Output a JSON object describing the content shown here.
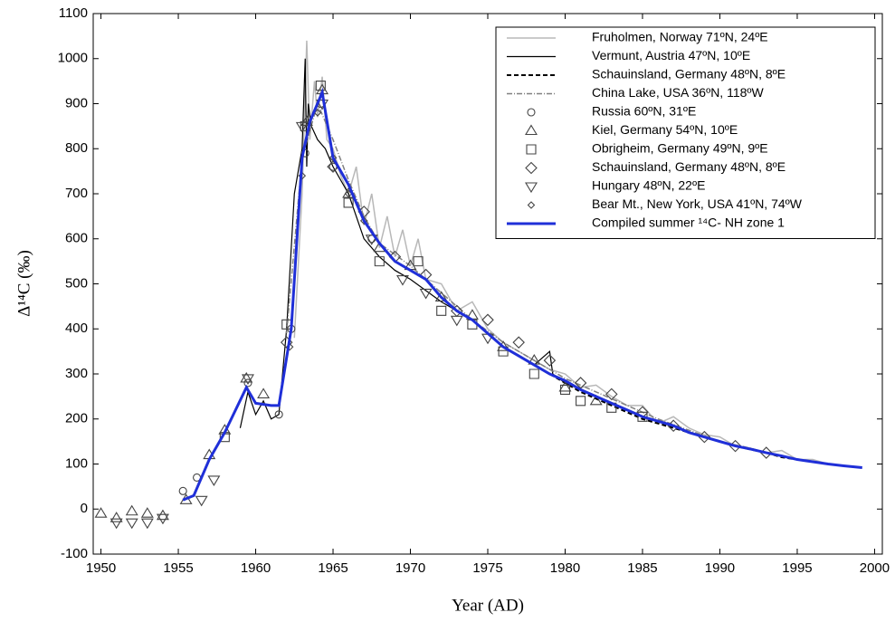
{
  "chart_data": {
    "type": "line",
    "x_label": "Year (AD)",
    "y_label": "Δ¹⁴C (‰)",
    "xlim": [
      1949.5,
      2000.5
    ],
    "ylim": [
      -100,
      1100
    ],
    "xticks": [
      1950,
      1955,
      1960,
      1965,
      1970,
      1975,
      1980,
      1985,
      1990,
      1995,
      2000
    ],
    "yticks": [
      -100,
      0,
      100,
      200,
      300,
      400,
      500,
      600,
      700,
      800,
      900,
      1000,
      1100
    ],
    "grid": false,
    "legend": "upper right",
    "series": [
      {
        "name": "Fruholmen, Norway 71ºN, 24ºE",
        "kind": "line",
        "dash": "solid",
        "width": 1.5,
        "color": "#b8b8b8",
        "x": [
          1962.5,
          1963,
          1963.3,
          1963.5,
          1963.8,
          1964,
          1964.3,
          1964.6,
          1965,
          1965.5,
          1966,
          1966.5,
          1967,
          1967.5,
          1968,
          1968.5,
          1969,
          1969.5,
          1970,
          1970.5,
          1971,
          1972,
          1973,
          1974,
          1975,
          1976,
          1977,
          1978,
          1979,
          1980,
          1981,
          1982,
          1983,
          1984,
          1985,
          1986,
          1987,
          1988,
          1989,
          1990,
          1991,
          1992,
          1993,
          1994,
          1995,
          1996,
          1997,
          1998,
          1999
        ],
        "values": [
          380,
          700,
          1040,
          820,
          950,
          870,
          960,
          820,
          800,
          740,
          700,
          760,
          630,
          700,
          580,
          650,
          560,
          620,
          540,
          600,
          510,
          500,
          440,
          460,
          400,
          370,
          350,
          330,
          310,
          300,
          270,
          275,
          250,
          230,
          230,
          190,
          205,
          180,
          165,
          160,
          140,
          135,
          125,
          130,
          110,
          110,
          100,
          97,
          93
        ]
      },
      {
        "name": "Vermunt, Austria 47ºN, 10ºE",
        "kind": "line",
        "dash": "solid",
        "width": 1.2,
        "color": "#000000",
        "x": [
          1959,
          1959.5,
          1960,
          1960.5,
          1961,
          1961.5,
          1962,
          1962.5,
          1963,
          1963.2,
          1963.3,
          1963.4,
          1963.6,
          1964,
          1964.5,
          1965,
          1966,
          1967,
          1968,
          1969,
          1970,
          1972,
          1974,
          1976,
          1978,
          1979,
          1979.2,
          1980,
          1982,
          1983
        ],
        "values": [
          180,
          260,
          210,
          240,
          200,
          210,
          400,
          700,
          800,
          1000,
          760,
          900,
          850,
          820,
          800,
          760,
          700,
          600,
          560,
          530,
          510,
          460,
          420,
          360,
          320,
          350,
          300,
          280,
          250,
          235
        ]
      },
      {
        "name": "Schauinsland, Germany 48ºN, 8ºE",
        "kind": "line",
        "dash": "dash",
        "width": 2,
        "color": "#000000",
        "x": [
          1977,
          1978,
          1979,
          1980,
          1981,
          1982,
          1983,
          1984,
          1985,
          1986,
          1987,
          1988,
          1989,
          1990,
          1991,
          1992,
          1993,
          1994,
          1995,
          1996,
          1997
        ],
        "values": [
          340,
          320,
          300,
          280,
          260,
          245,
          230,
          215,
          200,
          190,
          180,
          170,
          160,
          150,
          140,
          132,
          125,
          115,
          110,
          105,
          100
        ]
      },
      {
        "name": "China Lake, USA 36ºN, 118ºW",
        "kind": "line",
        "dash": "dashdot",
        "width": 1.5,
        "color": "#808080",
        "x": [
          1962,
          1963,
          1964,
          1965,
          1966,
          1967,
          1968,
          1970,
          1972,
          1974,
          1976,
          1978,
          1980,
          1982,
          1984,
          1986,
          1988,
          1990,
          1992,
          1993
        ],
        "values": [
          390,
          780,
          900,
          820,
          730,
          650,
          590,
          540,
          480,
          420,
          370,
          330,
          290,
          260,
          230,
          200,
          175,
          150,
          135,
          125
        ]
      },
      {
        "name": "Russia 60ºN, 31ºE",
        "kind": "marker",
        "marker": "circle",
        "color": "#444444",
        "x": [
          1955.3,
          1956.2,
          1959.5,
          1961.5,
          1962.3,
          1963.2,
          1964.2,
          1965,
          1967.5
        ],
        "values": [
          40,
          70,
          280,
          210,
          400,
          790,
          900,
          760,
          600
        ]
      },
      {
        "name": "Kiel, Germany 54ºN, 10ºE",
        "kind": "marker",
        "marker": "triangle",
        "color": "#444444",
        "x": [
          1950,
          1951,
          1952,
          1953,
          1954,
          1955.5,
          1957,
          1958,
          1959.4,
          1960.5,
          1963.3,
          1964.3,
          1966,
          1968,
          1970,
          1972,
          1974,
          1976,
          1978,
          1980,
          1982
        ],
        "values": [
          -10,
          -20,
          -5,
          -10,
          -15,
          20,
          120,
          175,
          290,
          255,
          860,
          930,
          700,
          580,
          540,
          470,
          430,
          360,
          330,
          270,
          240
        ]
      },
      {
        "name": "Obrigheim, Germany 49ºN, 9ºE",
        "kind": "marker",
        "marker": "square",
        "color": "#444444",
        "x": [
          1958,
          1962,
          1963.2,
          1964.2,
          1966,
          1968,
          1970.5,
          1972,
          1974,
          1976,
          1978,
          1980,
          1981,
          1983,
          1985
        ],
        "values": [
          160,
          410,
          850,
          940,
          680,
          550,
          550,
          440,
          410,
          350,
          300,
          265,
          240,
          225,
          205
        ]
      },
      {
        "name": "Schauinsland, Germany 48ºN, 8ºE",
        "kind": "marker",
        "marker": "diamond",
        "color": "#444444",
        "x": [
          1962,
          1965,
          1967,
          1969,
          1971,
          1973,
          1975,
          1977,
          1979,
          1981,
          1983,
          1985,
          1987,
          1989,
          1991,
          1993
        ],
        "values": [
          370,
          760,
          660,
          560,
          520,
          440,
          420,
          370,
          330,
          280,
          255,
          215,
          185,
          160,
          140,
          125
        ]
      },
      {
        "name": "Hungary 48ºN, 22ºE",
        "kind": "marker",
        "marker": "triangle-down",
        "color": "#444444",
        "x": [
          1951,
          1952,
          1953,
          1954,
          1956.5,
          1957.3,
          1959.5,
          1963,
          1964.3,
          1967.5,
          1969.5,
          1971,
          1973,
          1975
        ],
        "values": [
          -30,
          -30,
          -30,
          -20,
          20,
          65,
          290,
          850,
          900,
          600,
          510,
          480,
          420,
          380
        ]
      },
      {
        "name": "Bear Mt., New York, USA 41ºN, 74ºW",
        "kind": "marker",
        "marker": "small-diamond",
        "color": "#444444",
        "x": [
          1962.2,
          1963,
          1964,
          1965,
          1966,
          1967
        ],
        "values": [
          360,
          740,
          880,
          780,
          700,
          640
        ]
      },
      {
        "name": "Compiled summer ¹⁴C- NH zone 1",
        "kind": "line",
        "dash": "solid",
        "width": 3,
        "color": "#1f2fd8",
        "x": [
          1955.3,
          1956,
          1957,
          1958,
          1959.4,
          1960,
          1961,
          1961.5,
          1962.3,
          1963,
          1963.5,
          1964.3,
          1965,
          1966,
          1967,
          1968,
          1969,
          1970,
          1971,
          1972,
          1973,
          1974,
          1975,
          1976,
          1977,
          1978,
          1979,
          1980,
          1981,
          1982,
          1983,
          1984,
          1985,
          1986,
          1987,
          1988,
          1989,
          1990,
          1991,
          1992,
          1993,
          1994,
          1995,
          1996,
          1997,
          1998,
          1999.2
        ],
        "values": [
          20,
          30,
          110,
          170,
          270,
          235,
          230,
          230,
          400,
          780,
          860,
          925,
          780,
          720,
          640,
          590,
          550,
          530,
          510,
          470,
          440,
          420,
          390,
          360,
          340,
          320,
          300,
          285,
          265,
          250,
          235,
          220,
          205,
          195,
          185,
          170,
          160,
          150,
          140,
          133,
          125,
          118,
          110,
          105,
          100,
          96,
          92
        ]
      }
    ]
  }
}
